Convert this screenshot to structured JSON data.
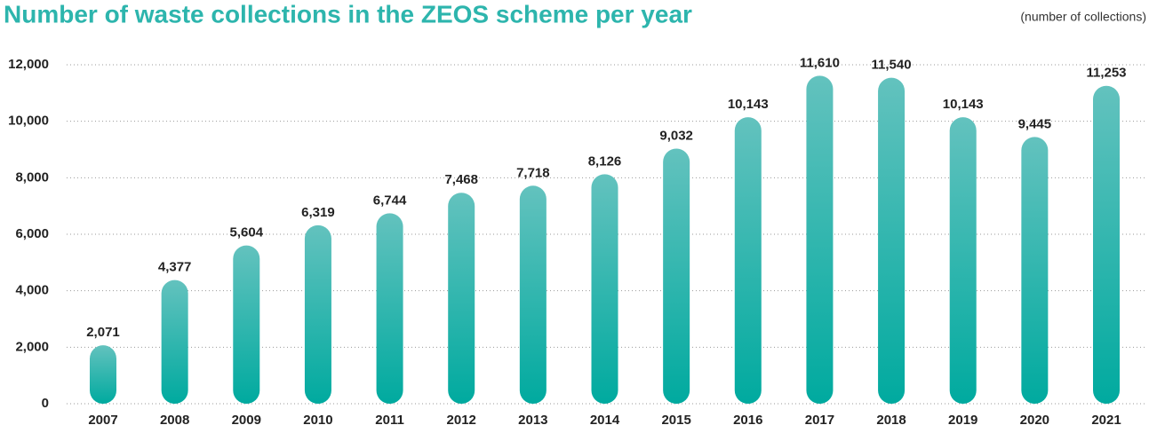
{
  "chart_data": {
    "type": "bar",
    "title": "Number of waste collections in the ZEOS scheme per year",
    "subtitle": "(number of collections)",
    "categories": [
      "2007",
      "2008",
      "2009",
      "2010",
      "2011",
      "2012",
      "2013",
      "2014",
      "2015",
      "2016",
      "2017",
      "2018",
      "2019",
      "2020",
      "2021"
    ],
    "values": [
      2071,
      4377,
      5604,
      6319,
      6744,
      7468,
      7718,
      8126,
      9032,
      10143,
      11610,
      11540,
      10143,
      9445,
      11253
    ],
    "value_labels": [
      "2,071",
      "4,377",
      "5,604",
      "6,319",
      "6,744",
      "7,468",
      "7,718",
      "8,126",
      "9,032",
      "10,143",
      "11,610",
      "11,540",
      "10,143",
      "9,445",
      "11,253"
    ],
    "color": "#1fb0a8",
    "ylim": [
      0,
      12000
    ],
    "yticks": [
      0,
      {
        "value": 2000,
        "label": "2,000"
      },
      {
        "value": 4000,
        "label": "4,000"
      },
      {
        "value": 6000,
        "label": "6,000"
      },
      {
        "value": 8000,
        "label": "8,000"
      },
      {
        "value": 10000,
        "label": "10,000"
      },
      {
        "value": 12000,
        "label": "12,000"
      }
    ],
    "grid": true
  }
}
